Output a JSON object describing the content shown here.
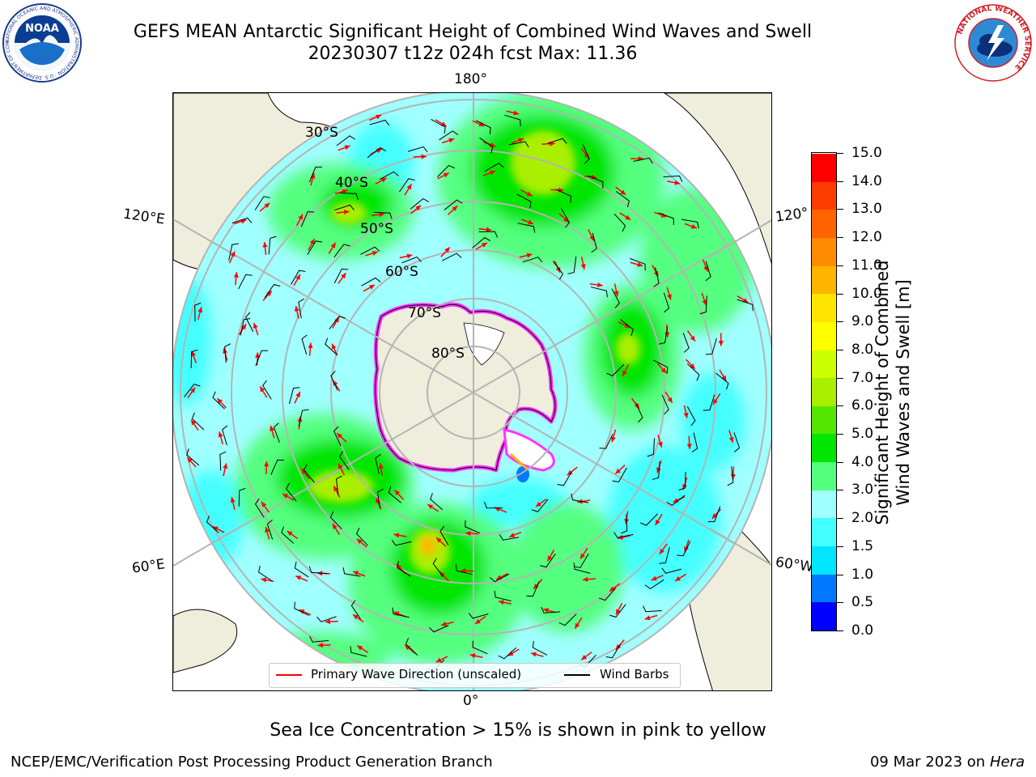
{
  "header": {
    "title_line1": "GEFS MEAN Antarctic Significant Height of Combined Wind Waves and Swell",
    "title_line2": "20230307 t12z 024h fcst   Max: 11.36"
  },
  "logos": {
    "noaa_text": "NOAA",
    "noaa_ring": "NATIONAL OCEANIC AND ATMOSPHERIC ADMINISTRATION · U.S. DEPARTMENT OF COMMERCE",
    "nws_ring": "NATIONAL WEATHER SERVICE"
  },
  "map": {
    "longitude_labels": {
      "top": "180°",
      "bottom": "0°",
      "left_upper": "120°E",
      "left_lower": "60°E",
      "right_upper": "120°",
      "right_lower": "60°W"
    },
    "latitude_labels": [
      "30°S",
      "40°S",
      "50°S",
      "60°S",
      "70°S",
      "80°S"
    ],
    "legend": {
      "wave_label": "Primary Wave Direction (unscaled)",
      "wind_label": "Wind Barbs"
    },
    "colors": {
      "land": "#efeedc",
      "ice_edge": "#ff33ff",
      "wave_arrow": "#ff0000",
      "grid": "#b4b4b4"
    }
  },
  "colorbar": {
    "label_line1": "Significant Height of Combined",
    "label_line2": "Wind Waves and Swell [m]",
    "ticks": [
      "0.0",
      "0.5",
      "1.0",
      "1.5",
      "2.0",
      "3.0",
      "4.0",
      "5.0",
      "6.0",
      "7.0",
      "8.0",
      "9.0",
      "10.0",
      "11.0",
      "12.0",
      "13.0",
      "14.0",
      "15.0"
    ],
    "colors": [
      "#0000ff",
      "#0078ff",
      "#00e6ff",
      "#44ffff",
      "#a0ffff",
      "#55ff7f",
      "#00e600",
      "#55e600",
      "#aaee00",
      "#ccff00",
      "#ffff00",
      "#ffe600",
      "#ffb400",
      "#ff8c00",
      "#ff6400",
      "#ff3c00",
      "#ff0000"
    ]
  },
  "footer": {
    "ice_note": "Sea Ice Concentration > 15% is shown in pink to yellow",
    "producer": "NCEP/EMC/Verification Post Processing Product Generation Branch",
    "date": "09 Mar 2023 on",
    "host": "Hera"
  }
}
